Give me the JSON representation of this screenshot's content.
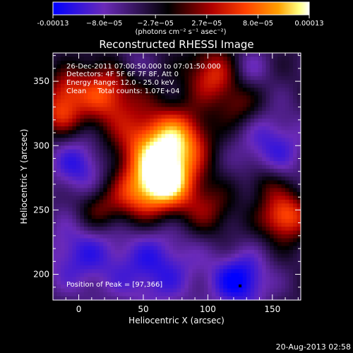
{
  "colorbar": {
    "tick_labels": [
      "-0.00013",
      "−8.0e−05",
      "−2.7e−05",
      "2.7e−05",
      "8.0e−05",
      "0.00013"
    ],
    "unit_label": "(photons cm⁻² s⁻¹ asec⁻²)",
    "min": -0.00013,
    "max": 0.00013
  },
  "info": {
    "time": "26-Dec-2011 07:00:50.000 to 07:01:50.000",
    "detectors": "Detectors: 4F 5F 6F 7F 8F, Att 0",
    "energy": "Energy Range: 12.0 - 25.0 keV",
    "clean": "Clean     Total counts: 1.07E+04",
    "peak": "Position of Peak = [97,366]"
  },
  "footer": {
    "date": "20-Aug-2013 02:58"
  },
  "chart_data": {
    "type": "heatmap",
    "title": "Reconstructed RHESSI Image",
    "xlabel": "Heliocentric X (arcsec)",
    "ylabel": "Heliocentric Y (arcsec)",
    "xlim": [
      -20,
      172
    ],
    "ylim": [
      180,
      372
    ],
    "x_ticks": [
      0,
      50,
      100,
      150
    ],
    "y_ticks": [
      200,
      250,
      300,
      350
    ],
    "peak": [
      97,
      366
    ],
    "colormap": [
      "#0000ff",
      "#6a2ab8",
      "#000000",
      "#b00000",
      "#ff4000",
      "#ffa000",
      "#ffff80",
      "#ffffff"
    ],
    "sources": [
      {
        "x": 68,
        "y": 272,
        "amp": 1.0,
        "sigma": 16
      },
      {
        "x": 55,
        "y": 300,
        "amp": 0.7,
        "sigma": 20
      },
      {
        "x": 80,
        "y": 305,
        "amp": 0.6,
        "sigma": 16
      },
      {
        "x": 20,
        "y": 340,
        "amp": 0.65,
        "sigma": 17
      },
      {
        "x": -15,
        "y": 325,
        "amp": 0.55,
        "sigma": 12
      },
      {
        "x": 105,
        "y": 355,
        "amp": 0.6,
        "sigma": 15
      },
      {
        "x": 125,
        "y": 330,
        "amp": 0.3,
        "sigma": 12
      },
      {
        "x": 45,
        "y": 260,
        "amp": 0.5,
        "sigma": 15
      },
      {
        "x": 15,
        "y": 250,
        "amp": 0.35,
        "sigma": 12
      },
      {
        "x": 100,
        "y": 250,
        "amp": 0.35,
        "sigma": 14
      },
      {
        "x": 160,
        "y": 245,
        "amp": 0.75,
        "sigma": 13
      },
      {
        "x": 145,
        "y": 270,
        "amp": 0.3,
        "sigma": 10
      },
      {
        "x": -10,
        "y": 345,
        "amp": 0.35,
        "sigma": 10
      }
    ],
    "negatives": [
      {
        "x": 0,
        "y": 285,
        "amp": -0.45,
        "sigma": 16
      },
      {
        "x": 0,
        "y": 215,
        "amp": -0.4,
        "sigma": 22
      },
      {
        "x": 60,
        "y": 205,
        "amp": -0.45,
        "sigma": 24
      },
      {
        "x": 125,
        "y": 195,
        "amp": -0.6,
        "sigma": 16
      },
      {
        "x": 150,
        "y": 300,
        "amp": -0.4,
        "sigma": 20
      },
      {
        "x": 130,
        "y": 360,
        "amp": -0.3,
        "sigma": 12
      },
      {
        "x": 40,
        "y": 365,
        "amp": -0.2,
        "sigma": 10
      }
    ]
  }
}
